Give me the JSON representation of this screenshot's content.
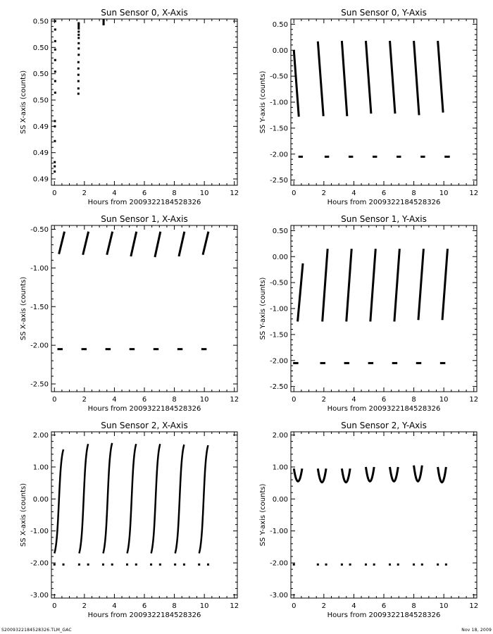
{
  "footer": {
    "left": "S2009322184528326.TLM_GAC",
    "right": "Nov 18, 2009"
  },
  "chart_data": [
    {
      "type": "scatter",
      "title": "Sun Sensor 0, X-Axis",
      "xlabel": "Hours from 2009322184528326",
      "ylabel": "SS X-axis (counts)",
      "xlim": [
        -0.2,
        12.2
      ],
      "ylim": [
        0.4894,
        0.5052
      ],
      "xticks": [
        0,
        2,
        4,
        6,
        8,
        10,
        12
      ],
      "yticks": [
        0.49,
        0.4925,
        0.495,
        0.4975,
        0.5,
        0.5025,
        0.505
      ],
      "ytick_labels": [
        "0.49",
        "0.49",
        "0.49",
        "0.50",
        "0.50",
        "0.50",
        "0.50"
      ],
      "series": [
        {
          "type": "scatter",
          "x": [
            0.02,
            0.02,
            0.02,
            0.03,
            0.03,
            0.03,
            0.05,
            0.05,
            0.05,
            0.05,
            0.05,
            0.05,
            0.05,
            0.05,
            1.6,
            1.6,
            1.6,
            1.6,
            1.6,
            1.6,
            1.62,
            1.62,
            1.62,
            1.62,
            1.62,
            1.62,
            1.62,
            1.62,
            1.62,
            1.62,
            3.28,
            3.28,
            3.28,
            3.28
          ],
          "y": [
            0.4907,
            0.4912,
            0.4916,
            0.4936,
            0.495,
            0.4955,
            0.4982,
            0.4993,
            0.5002,
            0.5013,
            0.5023,
            0.5031,
            0.5042,
            0.505,
            0.4981,
            0.4986,
            0.4993,
            0.4999,
            0.5005,
            0.5011,
            0.5018,
            0.5024,
            0.5029,
            0.5034,
            0.5037,
            0.504,
            0.5043,
            0.5045,
            0.5047,
            0.5048,
            0.5047,
            0.5048,
            0.505,
            0.5051
          ]
        }
      ]
    },
    {
      "type": "scatter",
      "title": "Sun Sensor 0, Y-Axis",
      "xlabel": "Hours from 2009322184528326",
      "ylabel": "SS Y-axis (counts)",
      "xlim": [
        -0.2,
        12.2
      ],
      "ylim": [
        -2.6,
        0.6
      ],
      "xticks": [
        0,
        2,
        4,
        6,
        8,
        10,
        12
      ],
      "yticks": [
        -2.5,
        -2,
        -1.5,
        -1,
        -0.5,
        0,
        0.5
      ],
      "ytick_labels": [
        "-2.50",
        "-2.00",
        "-1.50",
        "-1.00",
        "-0.50",
        "0.00",
        "0.50"
      ],
      "series": [
        {
          "type": "segments",
          "segments": [
            [
              0.0,
              0.0,
              0.33,
              -1.28
            ],
            [
              1.6,
              0.17,
              1.97,
              -1.27
            ],
            [
              3.2,
              0.18,
              3.55,
              -1.27
            ],
            [
              4.8,
              0.18,
              5.15,
              -1.22
            ],
            [
              6.4,
              0.18,
              6.75,
              -1.22
            ],
            [
              8.0,
              0.18,
              8.35,
              -1.25
            ],
            [
              9.6,
              0.18,
              9.95,
              -1.2
            ]
          ]
        },
        {
          "type": "segments",
          "segments": [
            [
              0.3,
              -2.05,
              0.6,
              -2.05
            ],
            [
              2.05,
              -2.05,
              2.35,
              -2.05
            ],
            [
              3.65,
              -2.05,
              3.95,
              -2.05
            ],
            [
              5.25,
              -2.05,
              5.55,
              -2.05
            ],
            [
              6.85,
              -2.05,
              7.15,
              -2.05
            ],
            [
              8.45,
              -2.05,
              8.75,
              -2.05
            ],
            [
              10.05,
              -2.05,
              10.4,
              -2.05
            ]
          ]
        }
      ]
    },
    {
      "type": "scatter",
      "title": "Sun Sensor 1, X-Axis",
      "xlabel": "Hours from 2009322184528326",
      "ylabel": "SS X-axis (counts)",
      "xlim": [
        -0.2,
        12.2
      ],
      "ylim": [
        -2.6,
        -0.45
      ],
      "xticks": [
        0,
        2,
        4,
        6,
        8,
        10,
        12
      ],
      "yticks": [
        -2.5,
        -2,
        -1.5,
        -1,
        -0.5
      ],
      "ytick_labels": [
        "-2.50",
        "-2.00",
        "-1.50",
        "-1.00",
        "-0.50"
      ],
      "series": [
        {
          "type": "segments",
          "segments": [
            [
              0.3,
              -0.82,
              0.67,
              -0.53
            ],
            [
              1.9,
              -0.83,
              2.27,
              -0.53
            ],
            [
              3.5,
              -0.83,
              3.87,
              -0.53
            ],
            [
              5.1,
              -0.85,
              5.47,
              -0.53
            ],
            [
              6.7,
              -0.86,
              7.07,
              -0.53
            ],
            [
              8.3,
              -0.85,
              8.67,
              -0.53
            ],
            [
              9.9,
              -0.83,
              10.27,
              -0.53
            ]
          ]
        },
        {
          "type": "segments",
          "segments": [
            [
              0.2,
              -2.05,
              0.55,
              -2.05
            ],
            [
              1.8,
              -2.05,
              2.15,
              -2.05
            ],
            [
              3.4,
              -2.05,
              3.75,
              -2.05
            ],
            [
              5.0,
              -2.05,
              5.35,
              -2.05
            ],
            [
              6.6,
              -2.05,
              6.95,
              -2.05
            ],
            [
              8.2,
              -2.05,
              8.55,
              -2.05
            ],
            [
              9.8,
              -2.05,
              10.15,
              -2.05
            ]
          ]
        }
      ]
    },
    {
      "type": "scatter",
      "title": "Sun Sensor 1, Y-Axis",
      "xlabel": "Hours from 2009322184528326",
      "ylabel": "SS Y-axis (counts)",
      "xlim": [
        -0.2,
        12.2
      ],
      "ylim": [
        -2.6,
        0.6
      ],
      "xticks": [
        0,
        2,
        4,
        6,
        8,
        10,
        12
      ],
      "yticks": [
        -2.5,
        -2,
        -1.5,
        -1,
        -0.5,
        0,
        0.5
      ],
      "ytick_labels": [
        "-2.50",
        "-2.00",
        "-1.50",
        "-1.00",
        "-0.50",
        "0.00",
        "0.50"
      ],
      "series": [
        {
          "type": "segments",
          "segments": [
            [
              0.25,
              -1.25,
              0.6,
              -0.13
            ],
            [
              1.9,
              -1.25,
              2.25,
              0.15
            ],
            [
              3.5,
              -1.25,
              3.85,
              0.15
            ],
            [
              5.1,
              -1.25,
              5.45,
              0.15
            ],
            [
              6.7,
              -1.25,
              7.05,
              0.15
            ],
            [
              8.3,
              -1.22,
              8.65,
              0.15
            ],
            [
              9.9,
              -1.22,
              10.25,
              0.15
            ]
          ]
        },
        {
          "type": "segments",
          "segments": [
            [
              -0.05,
              -2.05,
              0.3,
              -2.05
            ],
            [
              1.75,
              -2.05,
              2.1,
              -2.05
            ],
            [
              3.35,
              -2.05,
              3.7,
              -2.05
            ],
            [
              4.95,
              -2.05,
              5.3,
              -2.05
            ],
            [
              6.55,
              -2.05,
              6.9,
              -2.05
            ],
            [
              8.15,
              -2.05,
              8.5,
              -2.05
            ],
            [
              9.75,
              -2.05,
              10.1,
              -2.05
            ]
          ]
        }
      ]
    },
    {
      "type": "scatter",
      "title": "Sun Sensor 2, X-Axis",
      "xlabel": "Hours from 2009322184528326",
      "ylabel": "SS X-axis (counts)",
      "xlim": [
        -0.2,
        12.2
      ],
      "ylim": [
        -3.1,
        2.1
      ],
      "xticks": [
        0,
        2,
        4,
        6,
        8,
        10,
        12
      ],
      "yticks": [
        -3,
        -2,
        -1,
        0,
        1,
        2
      ],
      "ytick_labels": [
        "-3.00",
        "-2.00",
        "-1.00",
        "0.00",
        "1.00",
        "2.00"
      ],
      "series": [
        {
          "type": "curves",
          "curves": [
            [
              0.0,
              -1.7,
              0.6,
              1.55
            ],
            [
              1.65,
              -1.7,
              2.25,
              1.72
            ],
            [
              3.25,
              -1.7,
              3.85,
              1.75
            ],
            [
              4.85,
              -1.7,
              5.45,
              1.72
            ],
            [
              6.45,
              -1.7,
              7.05,
              1.72
            ],
            [
              8.05,
              -1.7,
              8.65,
              1.7
            ],
            [
              9.65,
              -1.7,
              10.25,
              1.68
            ]
          ]
        },
        {
          "type": "dots",
          "x": [
            0.0,
            0.6,
            1.65,
            2.25,
            3.25,
            3.85,
            4.85,
            5.45,
            6.45,
            7.05,
            8.05,
            8.65,
            9.65,
            10.25
          ],
          "y": [
            -2.05,
            -2.05,
            -2.05,
            -2.05,
            -2.05,
            -2.05,
            -2.05,
            -2.05,
            -2.05,
            -2.05,
            -2.05,
            -2.05,
            -2.05,
            -2.05
          ]
        }
      ]
    },
    {
      "type": "scatter",
      "title": "Sun Sensor 2, Y-Axis",
      "xlabel": "Hours from 2009322184528326",
      "ylabel": "SS Y-axis (counts)",
      "xlim": [
        -0.2,
        12.2
      ],
      "ylim": [
        -3.1,
        2.1
      ],
      "xticks": [
        0,
        2,
        4,
        6,
        8,
        10,
        12
      ],
      "yticks": [
        -3,
        -2,
        -1,
        0,
        1,
        2
      ],
      "ytick_labels": [
        "-3.00",
        "-2.00",
        "-1.00",
        "0.00",
        "1.00",
        "2.00"
      ],
      "series": [
        {
          "type": "arcs",
          "arcs": [
            [
              0.0,
              0.55,
              0.55,
              0.95
            ],
            [
              1.6,
              2.15,
              0.52,
              0.95
            ],
            [
              3.2,
              3.75,
              0.52,
              0.95
            ],
            [
              4.8,
              5.35,
              0.55,
              1.0
            ],
            [
              6.4,
              6.95,
              0.55,
              1.0
            ],
            [
              8.0,
              8.55,
              0.55,
              1.05
            ],
            [
              9.6,
              10.15,
              0.52,
              1.0
            ]
          ]
        },
        {
          "type": "dots",
          "x": [
            0.0,
            1.6,
            2.15,
            3.2,
            3.75,
            4.8,
            5.35,
            6.4,
            6.95,
            8.0,
            8.55,
            9.6,
            10.15
          ],
          "y": [
            -2.05,
            -2.05,
            -2.05,
            -2.05,
            -2.05,
            -2.05,
            -2.05,
            -2.05,
            -2.05,
            -2.05,
            -2.05,
            -2.05,
            -2.05
          ]
        }
      ]
    }
  ]
}
